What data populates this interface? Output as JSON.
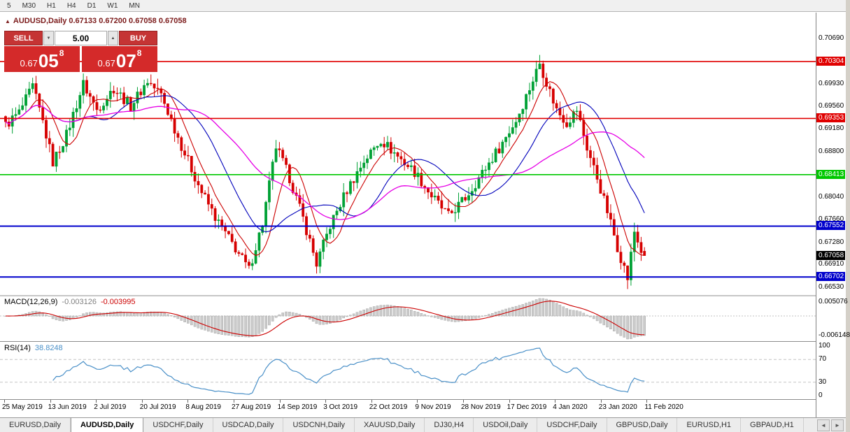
{
  "toolbar": {
    "timeframes": [
      "5",
      "M30",
      "H1",
      "H4",
      "D1",
      "W1",
      "MN"
    ]
  },
  "chart_header": {
    "icon": "▲",
    "text": "AUDUSD,Daily 0.67133 0.67200 0.67058 0.67058"
  },
  "trade_panel": {
    "sell_label": "SELL",
    "buy_label": "BUY",
    "volume": "5.00",
    "volume_down_icon": "▼",
    "volume_up_icon": "▲",
    "sell_price": {
      "prefix": "0.67",
      "big": "05",
      "sup": "8"
    },
    "buy_price": {
      "prefix": "0.67",
      "big": "07",
      "sup": "8"
    }
  },
  "price_axis": {
    "ticks": [
      {
        "label": "0.70690",
        "price": 0.7069
      },
      {
        "label": "0.69930",
        "price": 0.6993
      },
      {
        "label": "0.69560",
        "price": 0.6956
      },
      {
        "label": "0.69180",
        "price": 0.6918
      },
      {
        "label": "0.68800",
        "price": 0.688
      },
      {
        "label": "0.68040",
        "price": 0.6804
      },
      {
        "label": "0.67660",
        "price": 0.6766
      },
      {
        "label": "0.67280",
        "price": 0.6728
      },
      {
        "label": "0.66910",
        "price": 0.6691
      },
      {
        "label": "0.66530",
        "price": 0.6653
      }
    ]
  },
  "levels": [
    {
      "label": "0.70304",
      "price": 0.70304,
      "color": "#e00000",
      "width": 1.6
    },
    {
      "label": "0.69353",
      "price": 0.69353,
      "color": "#e00000",
      "width": 1.6
    },
    {
      "label": "0.68413",
      "price": 0.68413,
      "color": "#00c800",
      "width": 1.6
    },
    {
      "label": "0.67552",
      "price": 0.67552,
      "color": "#0000cc",
      "width": 2
    },
    {
      "label": "0.66702",
      "price": 0.66702,
      "color": "#0000cc",
      "width": 2
    }
  ],
  "current_price": {
    "label": "0.67058",
    "price": 0.67058,
    "bg": "#000000"
  },
  "macd_panel": {
    "name": "MACD(12,26,9)",
    "value_main": "-0.003126",
    "value_signal": "-0.003995",
    "axis_max": "0.005076",
    "axis_min": "-0.006148"
  },
  "rsi_panel": {
    "name": "RSI(14)",
    "value": "38.8248",
    "axis_ticks": [
      "100",
      "70",
      "30",
      "0"
    ],
    "levels": [
      70,
      30
    ]
  },
  "date_axis": [
    "25 May 2019",
    "13 Jun 2019",
    "2 Jul 2019",
    "20 Jul 2019",
    "8 Aug 2019",
    "27 Aug 2019",
    "14 Sep 2019",
    "3 Oct 2019",
    "22 Oct 2019",
    "9 Nov 2019",
    "28 Nov 2019",
    "17 Dec 2019",
    "4 Jan 2020",
    "23 Jan 2020",
    "11 Feb 2020"
  ],
  "tab_bar": {
    "scroll_left_icon": "◄",
    "scroll_right_icon": "►",
    "tabs": [
      {
        "label": "EURUSD,Daily",
        "active": false
      },
      {
        "label": "AUDUSD,Daily",
        "active": true
      },
      {
        "label": "USDCHF,Daily",
        "active": false
      },
      {
        "label": "USDCAD,Daily",
        "active": false
      },
      {
        "label": "USDCNH,Daily",
        "active": false
      },
      {
        "label": "XAUUSD,Daily",
        "active": false
      },
      {
        "label": "DJ30,H4",
        "active": false
      },
      {
        "label": "USDOil,Daily",
        "active": false
      },
      {
        "label": "USDCHF,Daily",
        "active": false
      },
      {
        "label": "GBPUSD,Daily",
        "active": false
      },
      {
        "label": "EURUSD,H1",
        "active": false
      },
      {
        "label": "GBPAUD,H1",
        "active": false
      }
    ]
  },
  "chart_data": {
    "type": "candlestick",
    "symbol": "AUDUSD",
    "timeframe": "Daily",
    "visible_range": {
      "start": "25 May 2019",
      "end": "11 Feb 2020"
    },
    "ohlc_current": {
      "open": 0.67133,
      "high": 0.672,
      "low": 0.67058,
      "close": 0.67058
    },
    "price_range": [
      0.664,
      0.711
    ],
    "candle_count": 190,
    "up_color": "#00a135",
    "down_color": "#d60000",
    "close_anchors": [
      [
        0,
        0.6924
      ],
      [
        4,
        0.6945
      ],
      [
        8,
        0.6988
      ],
      [
        11,
        0.693
      ],
      [
        14,
        0.6862
      ],
      [
        18,
        0.6908
      ],
      [
        23,
        0.6993
      ],
      [
        27,
        0.695
      ],
      [
        32,
        0.6986
      ],
      [
        37,
        0.6956
      ],
      [
        42,
        0.6998
      ],
      [
        46,
        0.6975
      ],
      [
        52,
        0.689
      ],
      [
        58,
        0.6812
      ],
      [
        63,
        0.676
      ],
      [
        68,
        0.6718
      ],
      [
        72,
        0.6682
      ],
      [
        76,
        0.676
      ],
      [
        80,
        0.6888
      ],
      [
        84,
        0.6836
      ],
      [
        88,
        0.6768
      ],
      [
        92,
        0.6692
      ],
      [
        96,
        0.6756
      ],
      [
        101,
        0.6816
      ],
      [
        106,
        0.6864
      ],
      [
        111,
        0.69
      ],
      [
        116,
        0.6872
      ],
      [
        121,
        0.6846
      ],
      [
        126,
        0.6806
      ],
      [
        131,
        0.6772
      ],
      [
        136,
        0.6802
      ],
      [
        141,
        0.6844
      ],
      [
        146,
        0.6886
      ],
      [
        151,
        0.6932
      ],
      [
        155,
        0.6986
      ],
      [
        158,
        0.7028
      ],
      [
        160,
        0.6996
      ],
      [
        163,
        0.695
      ],
      [
        166,
        0.6928
      ],
      [
        169,
        0.695
      ],
      [
        172,
        0.6886
      ],
      [
        175,
        0.6836
      ],
      [
        178,
        0.678
      ],
      [
        181,
        0.672
      ],
      [
        184,
        0.6668
      ],
      [
        186,
        0.6746
      ],
      [
        188,
        0.6714
      ],
      [
        189,
        0.6706
      ]
    ],
    "indicators": {
      "moving_averages": [
        {
          "period": 8,
          "color": "#cc0000"
        },
        {
          "period": 20,
          "color": "#0000bb"
        },
        {
          "period": 40,
          "color": "#e600e6"
        }
      ],
      "macd": {
        "fast": 12,
        "slow": 26,
        "signal": 9,
        "current_main": -0.003126,
        "current_signal": -0.003995
      },
      "rsi": {
        "period": 14,
        "current": 38.8248
      }
    }
  }
}
